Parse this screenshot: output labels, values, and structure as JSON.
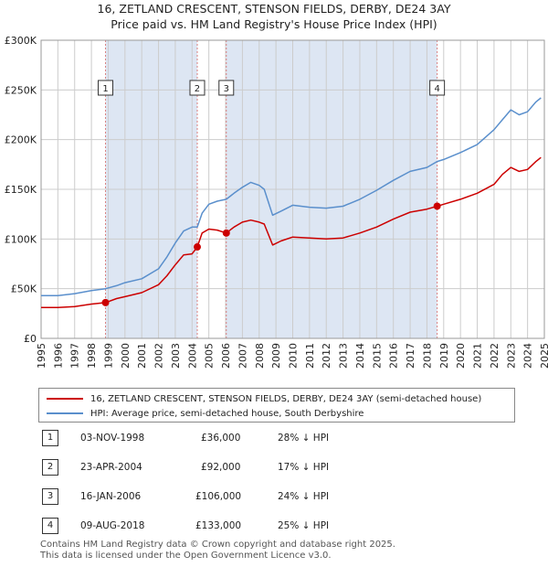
{
  "title_line1": "16, ZETLAND CRESCENT, STENSON FIELDS, DERBY, DE24 3AY",
  "title_line2": "Price paid vs. HM Land Registry's House Price Index (HPI)",
  "colors": {
    "property": "#cc0000",
    "hpi": "#5a8fcc",
    "shade": "#dde6f3",
    "marker_line": "#d98080"
  },
  "chart_data": {
    "type": "line",
    "ylim": [
      0,
      300000
    ],
    "xlim": [
      1995,
      2025
    ],
    "y_ticks": [
      {
        "value": 0,
        "label": "£0"
      },
      {
        "value": 50000,
        "label": "£50K"
      },
      {
        "value": 100000,
        "label": "£100K"
      },
      {
        "value": 150000,
        "label": "£150K"
      },
      {
        "value": 200000,
        "label": "£200K"
      },
      {
        "value": 250000,
        "label": "£250K"
      },
      {
        "value": 300000,
        "label": "£300K"
      }
    ],
    "x_ticks": [
      "1995",
      "1996",
      "1997",
      "1998",
      "1999",
      "2000",
      "2001",
      "2002",
      "2003",
      "2004",
      "2005",
      "2006",
      "2007",
      "2008",
      "2009",
      "2010",
      "2011",
      "2012",
      "2013",
      "2014",
      "2015",
      "2016",
      "2017",
      "2018",
      "2019",
      "2020",
      "2021",
      "2022",
      "2023",
      "2024",
      "2025"
    ],
    "shaded_regions": [
      [
        1998.84,
        2004.31
      ],
      [
        2006.04,
        2018.61
      ]
    ],
    "series": [
      {
        "name": "16, ZETLAND CRESCENT, STENSON FIELDS, DERBY, DE24 3AY (semi-detached house)",
        "color": "#cc0000",
        "x": [
          1995,
          1996,
          1997,
          1998,
          1998.84,
          1999.5,
          2000,
          2001,
          2002,
          2002.5,
          2003,
          2003.5,
          2004,
          2004.31,
          2004.6,
          2005,
          2005.5,
          2006.04,
          2006.5,
          2007,
          2007.5,
          2008,
          2008.3,
          2008.8,
          2009.3,
          2010,
          2011,
          2012,
          2013,
          2014,
          2015,
          2016,
          2017,
          2018,
          2018.61,
          2019,
          2020,
          2021,
          2022,
          2022.5,
          2023,
          2023.5,
          2024,
          2024.5,
          2024.8
        ],
        "values": [
          31000,
          31000,
          32000,
          34500,
          36000,
          40000,
          42000,
          46000,
          54000,
          63000,
          74000,
          84000,
          85000,
          92000,
          106000,
          110000,
          109000,
          106000,
          112000,
          117000,
          119000,
          117000,
          115000,
          94000,
          98000,
          102000,
          101000,
          100000,
          101000,
          106000,
          112000,
          120000,
          127000,
          130000,
          133000,
          135000,
          140000,
          146000,
          155000,
          165000,
          172000,
          168000,
          170000,
          178000,
          182000
        ]
      },
      {
        "name": "HPI: Average price, semi-detached house, South Derbyshire",
        "color": "#5a8fcc",
        "x": [
          1995,
          1996,
          1997,
          1998,
          1998.84,
          1999.5,
          2000,
          2001,
          2002,
          2002.5,
          2003,
          2003.5,
          2004,
          2004.31,
          2004.6,
          2005,
          2005.5,
          2006.04,
          2006.5,
          2007,
          2007.5,
          2008,
          2008.3,
          2008.8,
          2009.3,
          2010,
          2011,
          2012,
          2013,
          2014,
          2015,
          2016,
          2017,
          2018,
          2018.61,
          2019,
          2020,
          2021,
          2022,
          2022.5,
          2023,
          2023.5,
          2024,
          2024.5,
          2024.8
        ],
        "values": [
          43000,
          43000,
          45000,
          48000,
          50000,
          53000,
          56000,
          60000,
          70000,
          82000,
          96000,
          108000,
          112000,
          112000,
          126000,
          135000,
          138000,
          140000,
          146000,
          152000,
          157000,
          154000,
          150000,
          124000,
          128000,
          134000,
          132000,
          131000,
          133000,
          140000,
          149000,
          159000,
          168000,
          172000,
          178000,
          180000,
          187000,
          195000,
          210000,
          220000,
          230000,
          225000,
          228000,
          238000,
          242000
        ]
      }
    ],
    "markers": [
      {
        "label": "1",
        "x": 1998.84,
        "y": 36000
      },
      {
        "label": "2",
        "x": 2004.31,
        "y": 92000
      },
      {
        "label": "3",
        "x": 2006.04,
        "y": 106000
      },
      {
        "label": "4",
        "x": 2018.61,
        "y": 133000
      }
    ]
  },
  "legend": {
    "property_label": "16, ZETLAND CRESCENT, STENSON FIELDS, DERBY, DE24 3AY (semi-detached house)",
    "hpi_label": "HPI: Average price, semi-detached house, South Derbyshire"
  },
  "transactions": [
    {
      "num": "1",
      "date": "03-NOV-1998",
      "price": "£36,000",
      "hpi": "28% ↓ HPI"
    },
    {
      "num": "2",
      "date": "23-APR-2004",
      "price": "£92,000",
      "hpi": "17% ↓ HPI"
    },
    {
      "num": "3",
      "date": "16-JAN-2006",
      "price": "£106,000",
      "hpi": "24% ↓ HPI"
    },
    {
      "num": "4",
      "date": "09-AUG-2018",
      "price": "£133,000",
      "hpi": "25% ↓ HPI"
    }
  ],
  "footer_line1": "Contains HM Land Registry data © Crown copyright and database right 2025.",
  "footer_line2": "This data is licensed under the Open Government Licence v3.0."
}
